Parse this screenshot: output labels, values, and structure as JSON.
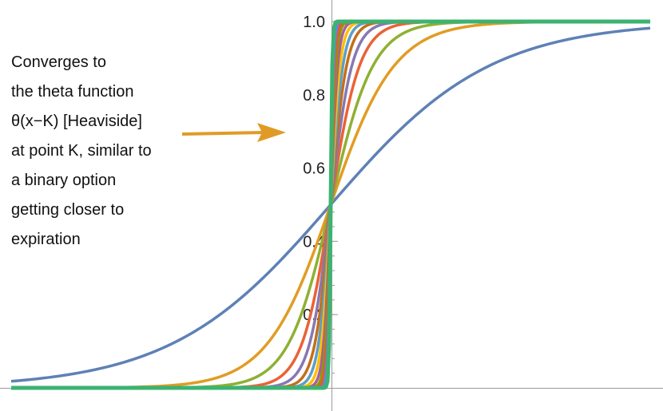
{
  "chart_data": {
    "type": "line",
    "title": "",
    "xlabel": "",
    "ylabel": "",
    "ylim": [
      0,
      1.0
    ],
    "y_ticks": [
      "0.2",
      "0.4",
      "0.6",
      "0.8",
      "1.0"
    ],
    "y_tick_values": [
      0.2,
      0.4,
      0.6,
      0.8,
      1.0
    ],
    "grid": false,
    "legend": "none",
    "x_range": [
      -1,
      1
    ],
    "strike_K": 0,
    "series": [
      {
        "color": "#5E81B5",
        "steepness": 4,
        "x": [
          -1,
          -0.5,
          -0.25,
          0,
          0.25,
          0.5,
          1
        ],
        "values": [
          0.02,
          0.12,
          0.27,
          0.5,
          0.73,
          0.88,
          0.98
        ]
      },
      {
        "color": "#E19C24",
        "steepness": 10,
        "x": [
          -1,
          -0.25,
          -0.1,
          0,
          0.1,
          0.25,
          1
        ],
        "values": [
          0.0,
          0.08,
          0.27,
          0.5,
          0.73,
          0.92,
          1.0
        ]
      },
      {
        "color": "#8FB032",
        "steepness": 15,
        "x": [
          -1,
          -0.2,
          -0.05,
          0,
          0.05,
          0.2,
          1
        ],
        "values": [
          0.0,
          0.05,
          0.32,
          0.5,
          0.68,
          0.95,
          1.0
        ]
      },
      {
        "color": "#EB6235",
        "steepness": 22,
        "x": [
          -1,
          -0.1,
          0,
          0.1,
          1
        ],
        "values": [
          0.0,
          0.1,
          0.5,
          0.9,
          1.0
        ]
      },
      {
        "color": "#8778B3",
        "steepness": 30,
        "x": [
          -1,
          -0.1,
          0,
          0.1,
          1
        ],
        "values": [
          0.0,
          0.05,
          0.5,
          0.95,
          1.0
        ]
      },
      {
        "color": "#C56E1A",
        "steepness": 40,
        "x": [
          -1,
          -0.05,
          0,
          0.05,
          1
        ],
        "values": [
          0.0,
          0.12,
          0.5,
          0.88,
          1.0
        ]
      },
      {
        "color": "#5D9EC7",
        "steepness": 52,
        "x": [
          -1,
          -0.05,
          0,
          0.05,
          1
        ],
        "values": [
          0.0,
          0.07,
          0.5,
          0.93,
          1.0
        ]
      },
      {
        "color": "#FFBF00",
        "steepness": 68,
        "x": [
          -1,
          -0.03,
          0,
          0.03,
          1
        ],
        "values": [
          0.0,
          0.12,
          0.5,
          0.88,
          1.0
        ]
      },
      {
        "color": "#A5609D",
        "steepness": 90,
        "x": [
          -1,
          -0.03,
          0,
          0.03,
          1
        ],
        "values": [
          0.0,
          0.06,
          0.5,
          0.94,
          1.0
        ]
      },
      {
        "color": "#929600",
        "steepness": 120,
        "x": [
          -1,
          -0.02,
          0,
          0.02,
          1
        ],
        "values": [
          0.0,
          0.08,
          0.5,
          0.92,
          1.0
        ]
      },
      {
        "color": "#E95536",
        "steepness": 160,
        "x": [
          -1,
          -0.02,
          0,
          0.02,
          1
        ],
        "values": [
          0.0,
          0.04,
          0.5,
          0.96,
          1.0
        ]
      },
      {
        "color": "#6685D9",
        "steepness": 220,
        "x": [
          -1,
          -0.01,
          0,
          0.01,
          1
        ],
        "values": [
          0.0,
          0.1,
          0.5,
          0.9,
          1.0
        ]
      },
      {
        "color": "#3CB371",
        "steepness": 400,
        "x": [
          -1,
          -0.01,
          0,
          0.01,
          1
        ],
        "values": [
          0.0,
          0.02,
          0.5,
          0.98,
          1.0
        ]
      }
    ],
    "annotation": {
      "lines": [
        "Converges to",
        "the theta function",
        "θ(x−K) [Heaviside]",
        "at point K, similar to",
        "a binary option",
        "getting closer to",
        "expiration"
      ],
      "arrow_color": "#E09B27"
    }
  }
}
